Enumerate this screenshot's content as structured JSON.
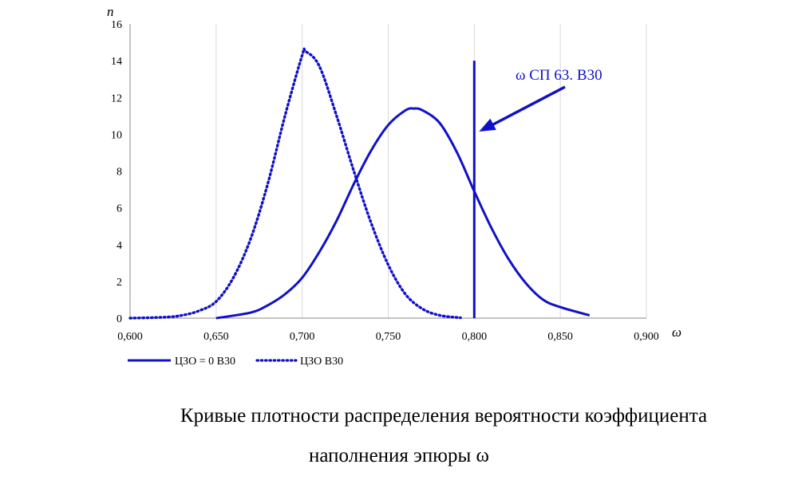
{
  "chart_data": {
    "type": "line",
    "xlabel": "ω",
    "ylabel": "n",
    "xlim": [
      0.6,
      0.9
    ],
    "ylim": [
      0,
      16
    ],
    "x_ticks": [
      "0,600",
      "0,650",
      "0,700",
      "0,750",
      "0,800",
      "0,850",
      "0,900"
    ],
    "y_ticks": [
      "0",
      "2",
      "4",
      "6",
      "8",
      "10",
      "12",
      "14",
      "16"
    ],
    "grid": "vertical",
    "legend_position": "bottom-left",
    "series": [
      {
        "name": "ЦЗО = 0 В30",
        "style": "solid",
        "color": "#1010c8",
        "points": [
          [
            0.65,
            0.0
          ],
          [
            0.67,
            0.3
          ],
          [
            0.68,
            0.7
          ],
          [
            0.69,
            1.3
          ],
          [
            0.7,
            2.2
          ],
          [
            0.71,
            3.6
          ],
          [
            0.72,
            5.3
          ],
          [
            0.73,
            7.3
          ],
          [
            0.74,
            9.1
          ],
          [
            0.75,
            10.5
          ],
          [
            0.76,
            11.3
          ],
          [
            0.765,
            11.4
          ],
          [
            0.77,
            11.3
          ],
          [
            0.78,
            10.6
          ],
          [
            0.79,
            9.0
          ],
          [
            0.8,
            6.9
          ],
          [
            0.81,
            4.9
          ],
          [
            0.82,
            3.2
          ],
          [
            0.83,
            1.9
          ],
          [
            0.84,
            1.0
          ],
          [
            0.85,
            0.6
          ],
          [
            0.867,
            0.15
          ]
        ]
      },
      {
        "name": "ЦЗО В30",
        "style": "dotted",
        "color": "#1010c8",
        "points": [
          [
            0.6,
            0.0
          ],
          [
            0.62,
            0.05
          ],
          [
            0.63,
            0.15
          ],
          [
            0.64,
            0.4
          ],
          [
            0.65,
            0.9
          ],
          [
            0.66,
            2.2
          ],
          [
            0.67,
            4.3
          ],
          [
            0.68,
            7.3
          ],
          [
            0.69,
            11.0
          ],
          [
            0.7,
            14.3
          ],
          [
            0.702,
            14.5
          ],
          [
            0.71,
            13.7
          ],
          [
            0.72,
            11.0
          ],
          [
            0.73,
            8.0
          ],
          [
            0.74,
            5.2
          ],
          [
            0.75,
            2.9
          ],
          [
            0.76,
            1.3
          ],
          [
            0.77,
            0.5
          ],
          [
            0.78,
            0.15
          ],
          [
            0.792,
            0.02
          ]
        ]
      }
    ],
    "reference_line": {
      "x": 0.8,
      "y_top": 14.0,
      "color": "#1010c8"
    },
    "annotation": {
      "text": "ω  СП 63. В30",
      "color": "#1010c8"
    }
  },
  "caption": {
    "line1": "Кривые плотности распределения вероятности коэффициента",
    "line2": "наполнения эпюры ω"
  }
}
